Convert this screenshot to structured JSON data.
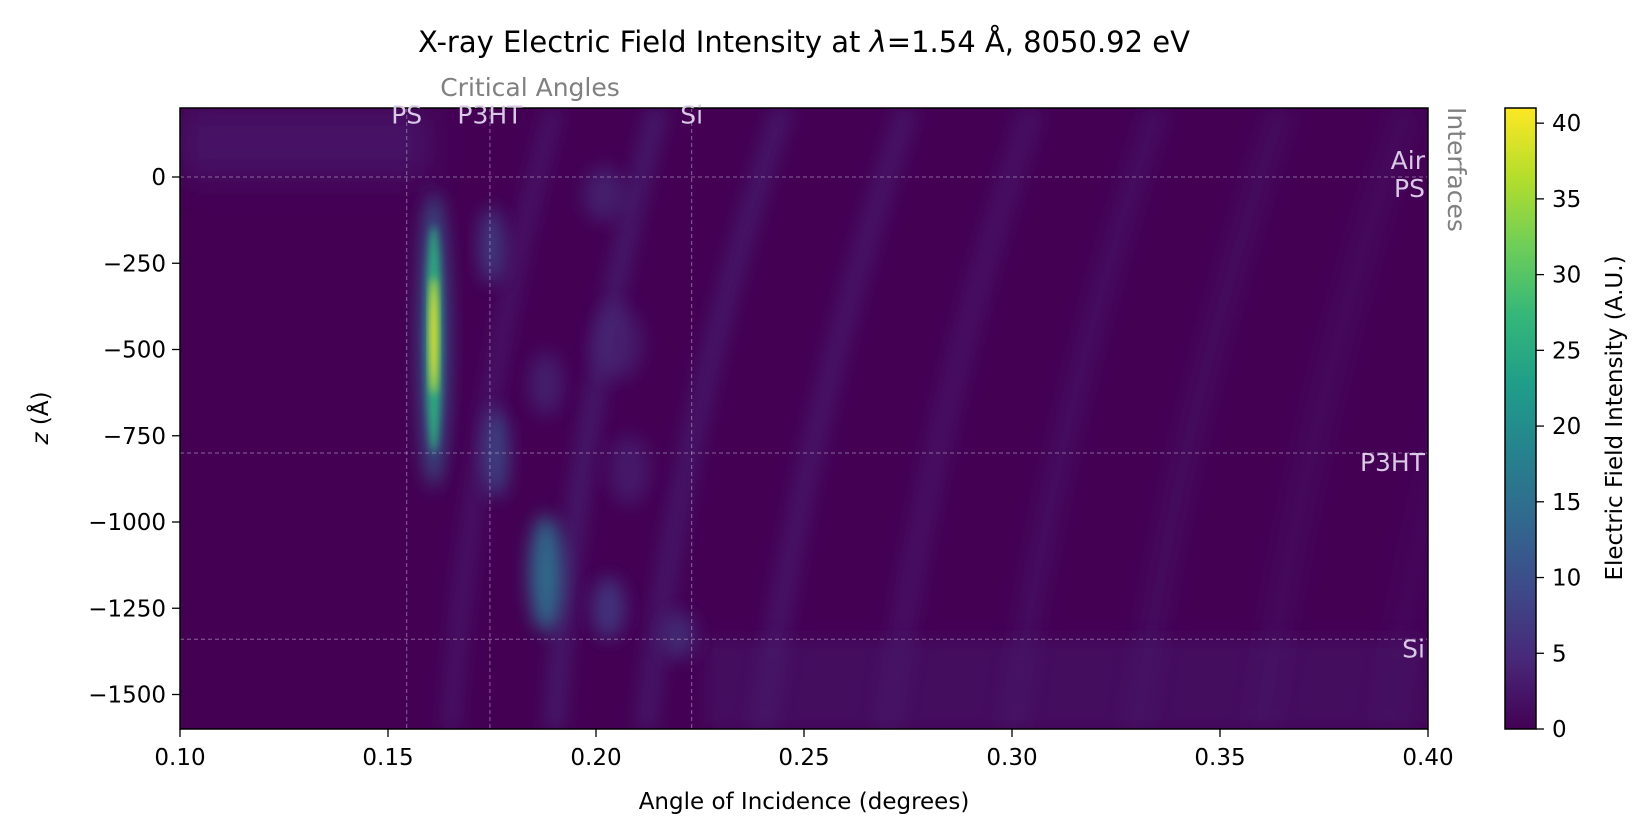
{
  "chart_data": {
    "type": "heatmap",
    "title_prefix": "X-ray Electric Field Intensity at ",
    "title_lambda": "λ",
    "title_suffix": "=1.54 Å, 8050.92 eV",
    "xlabel": "Angle of Incidence (degrees)",
    "ylabel_var": "z",
    "ylabel_unit": " (Å)",
    "colorbar_label": "Electric Field Intensity (A.U.)",
    "xlim": [
      0.1,
      0.4
    ],
    "ylim": [
      -1600,
      200
    ],
    "clim": [
      0,
      41
    ],
    "colormap": "viridis",
    "x_ticks": [
      0.1,
      0.15,
      0.2,
      0.25,
      0.3,
      0.35,
      0.4
    ],
    "x_tick_labels": [
      "0.10",
      "0.15",
      "0.20",
      "0.25",
      "0.30",
      "0.35",
      "0.40"
    ],
    "y_ticks": [
      0,
      -250,
      -500,
      -750,
      -1000,
      -1250,
      -1500
    ],
    "y_tick_labels": [
      "0",
      "−250",
      "−500",
      "−750",
      "−1000",
      "−1250",
      "−1500"
    ],
    "cbar_ticks": [
      0,
      5,
      10,
      15,
      20,
      25,
      30,
      35,
      40
    ],
    "cbar_tick_labels": [
      "0",
      "5",
      "10",
      "15",
      "20",
      "25",
      "30",
      "35",
      "40"
    ],
    "critical_angles_title": "Critical Angles",
    "critical_angles": [
      {
        "label": "PS",
        "x": 0.1545
      },
      {
        "label": "P3HT",
        "x": 0.1745
      },
      {
        "label": "Si",
        "x": 0.223
      }
    ],
    "interfaces_title": "Interfaces",
    "interfaces": [
      {
        "label": "Air",
        "z": 0
      },
      {
        "label": "PS",
        "z": 0
      },
      {
        "label": "P3HT",
        "z": -800
      },
      {
        "label": "Si",
        "z": -1340
      }
    ],
    "peak_intensity": 41,
    "peak_location": {
      "x": 0.161,
      "z": -460
    }
  }
}
